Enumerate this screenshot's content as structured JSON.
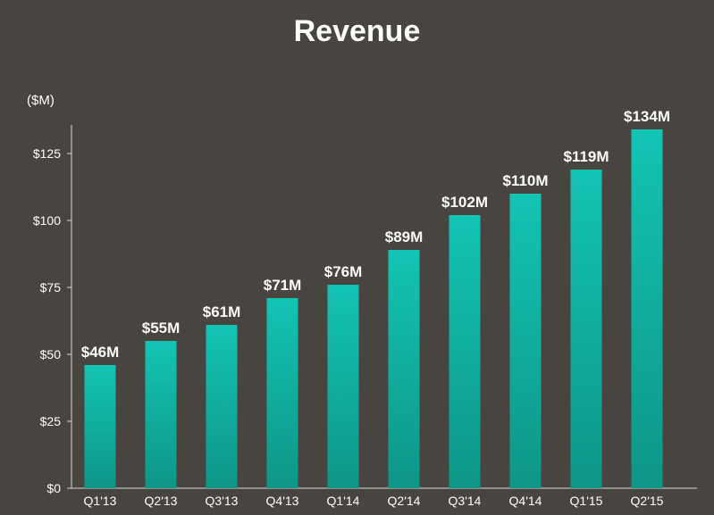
{
  "chart_data": {
    "type": "bar",
    "title": "Revenue",
    "unit_label": "($M)",
    "categories": [
      "Q1'13",
      "Q2'13",
      "Q3'13",
      "Q4'13",
      "Q1'14",
      "Q2'14",
      "Q3'14",
      "Q4'14",
      "Q1'15",
      "Q2'15"
    ],
    "values": [
      46,
      55,
      61,
      71,
      76,
      89,
      102,
      110,
      119,
      134
    ],
    "data_labels": [
      "$46M",
      "$55M",
      "$61M",
      "$71M",
      "$76M",
      "$89M",
      "$102M",
      "$110M",
      "$119M",
      "$134M"
    ],
    "y_ticks": [
      0,
      25,
      50,
      75,
      100,
      125
    ],
    "y_tick_labels": [
      "$0",
      "$25",
      "$50",
      "$75",
      "$100",
      "$125"
    ],
    "ylim": [
      0,
      134
    ],
    "grid": false,
    "legend": "none",
    "colors": {
      "bar_top": "#13c4b4",
      "bar_bottom": "#0e9688",
      "background": "#48443f",
      "text": "#ffffff"
    }
  }
}
